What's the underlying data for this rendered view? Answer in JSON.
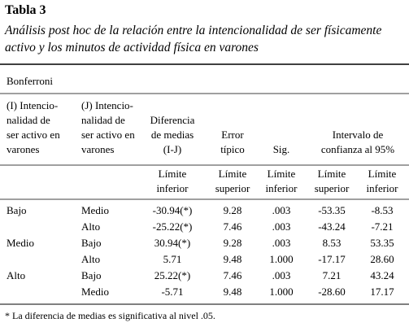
{
  "title": "Tabla 3",
  "subtitle": [
    "Análisis post hoc de la relación entre la intencionalidad de ser físicamente",
    "activo y los minutos de actividad física en varones"
  ],
  "method": "Bonferroni",
  "header": {
    "columns": [
      [
        "(I) Intencio-",
        "nalidad de",
        "ser activo en",
        "varones"
      ],
      [
        "(J) Intencio-",
        "nalidad de",
        "ser activo en",
        "varones"
      ],
      [
        "Diferencia",
        "de medias",
        "(I-J)"
      ],
      [
        "Error",
        "típico"
      ],
      [
        "Sig."
      ],
      [
        "Intervalo de",
        "confianza al 95%"
      ]
    ],
    "subheader": [
      [
        "Límite",
        "inferior"
      ],
      [
        "Límite",
        "superior"
      ],
      [
        "Límite",
        "inferior"
      ],
      [
        "Límite",
        "superior"
      ],
      [
        "Límite",
        "inferior"
      ]
    ]
  },
  "groups": [
    {
      "i": "Bajo",
      "rows": [
        [
          "Medio",
          "-30.94(*)",
          "9.28",
          ".003",
          "-53.35",
          "-8.53"
        ],
        [
          "Alto",
          "-25.22(*)",
          "7.46",
          ".003",
          "-43.24",
          "-7.21"
        ]
      ]
    },
    {
      "i": "Medio",
      "rows": [
        [
          "Bajo",
          "30.94(*)",
          "9.28",
          ".003",
          "8.53",
          "53.35"
        ],
        [
          "Alto",
          "5.71",
          "9.48",
          "1.000",
          "-17.17",
          "28.60"
        ]
      ]
    },
    {
      "i": "Alto",
      "rows": [
        [
          "Bajo",
          "25.22(*)",
          "7.46",
          ".003",
          "7.21",
          "43.24"
        ],
        [
          "Medio",
          "-5.71",
          "9.48",
          "1.000",
          "-28.60",
          "17.17"
        ]
      ]
    }
  ],
  "footnote": "* La diferencia de medias es significativa al nivel .05."
}
